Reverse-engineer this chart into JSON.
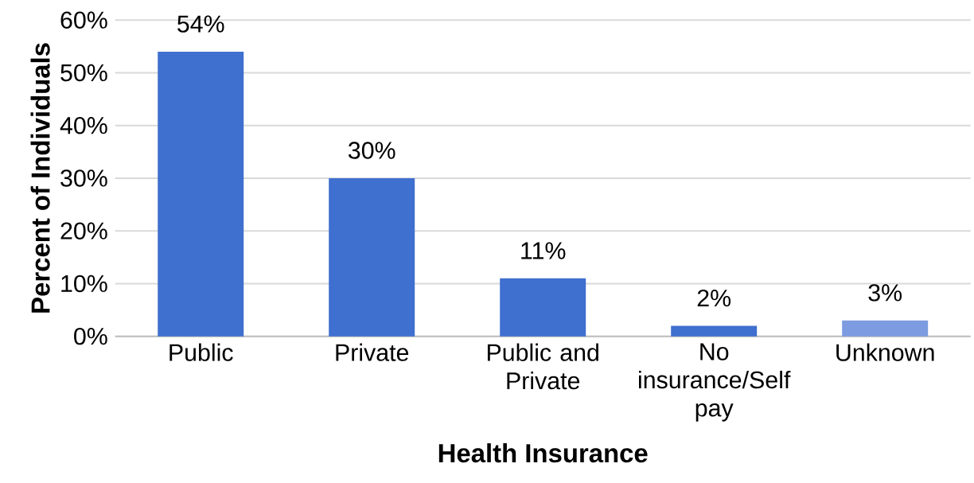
{
  "chart_data": {
    "type": "bar",
    "xlabel": "Health Insurance",
    "ylabel": "Percent of Individuals",
    "categories": [
      "Public",
      "Private",
      "Public and Private",
      "No insurance/Self pay",
      "Unknown"
    ],
    "values": [
      54,
      30,
      11,
      2,
      3
    ],
    "value_labels": [
      "54%",
      "30%",
      "11%",
      "2%",
      "3%"
    ],
    "colors": [
      "#3f6fcf",
      "#3f6fcf",
      "#3f6fcf",
      "#3f6fcf",
      "#7c9be0"
    ],
    "ylim": [
      0,
      60
    ],
    "yticks": [
      {
        "value": 0,
        "label": "0%"
      },
      {
        "value": 10,
        "label": "10%"
      },
      {
        "value": 20,
        "label": "20%"
      },
      {
        "value": 30,
        "label": "30%"
      },
      {
        "value": 40,
        "label": "40%"
      },
      {
        "value": 50,
        "label": "50%"
      },
      {
        "value": 60,
        "label": "60%"
      }
    ],
    "grid": "y"
  }
}
